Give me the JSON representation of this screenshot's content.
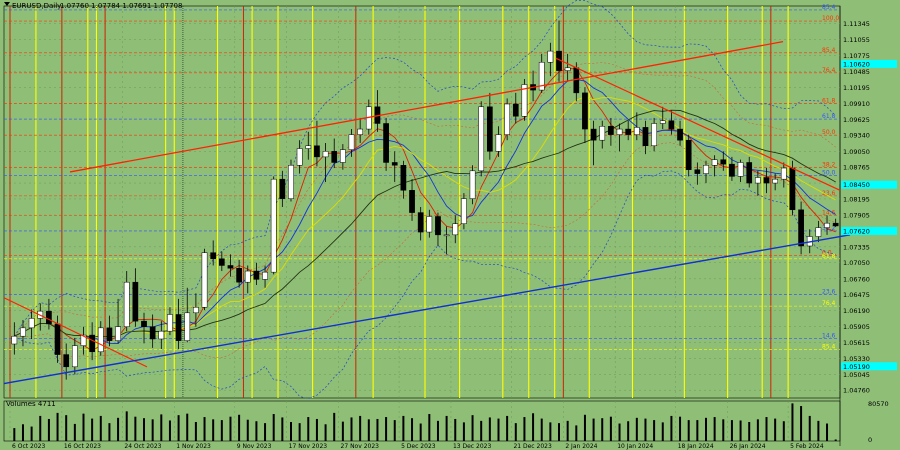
{
  "header": {
    "symbol": "EURUSD,Daily",
    "ohlc": "1.07760 1.07784 1.07691 1.07708"
  },
  "volume_label": "Volumes 4711",
  "colors": {
    "background": "#8fbf77",
    "bull": "#ffffff",
    "bear": "#000000",
    "yellow_vline": "#ffff00",
    "red_vline": "#cc2200",
    "red_trendline": "#ff2200",
    "blue_trendline": "#1030d0",
    "price_tag_highlight": "#00ffff"
  },
  "chart_data": {
    "type": "candlestick",
    "x_axis": {
      "labels": [
        "6 Oct 2023",
        "16 Oct 2023",
        "24 Oct 2023",
        "1 Nov 2023",
        "9 Nov 2023",
        "17 Nov 2023",
        "27 Nov 2023",
        "5 Dec 2023",
        "13 Dec 2023",
        "21 Dec 2023",
        "2 Jan 2024",
        "10 Jan 2024",
        "18 Jan 2024",
        "26 Jan 2024",
        "5 Feb 2024"
      ]
    },
    "y_axis": {
      "ticks": [
        "1.11345",
        "1.11055",
        "1.10775",
        "1.10485",
        "1.10195",
        "1.09910",
        "1.09625",
        "1.09340",
        "1.09050",
        "1.08765",
        "1.08480",
        "1.08195",
        "1.07905",
        "1.07620",
        "1.07335",
        "1.07050",
        "1.06760",
        "1.06475",
        "1.06190",
        "1.05905",
        "1.05615",
        "1.05330",
        "1.05045",
        "1.04760"
      ],
      "range": [
        1.0462,
        1.1166
      ],
      "highlighted_ticks": [
        "1.10620",
        "1.08450",
        "1.07620",
        "1.05190"
      ]
    },
    "fib_levels": [
      {
        "label": "85.4",
        "value": 1.1159,
        "color": "#3355ff"
      },
      {
        "label": "100.0",
        "value": 1.1139,
        "color": "#ff3300"
      },
      {
        "label": "85.4",
        "value": 1.1082,
        "color": "#ff3300"
      },
      {
        "label": "76.4",
        "value": 1.1046,
        "color": "#ff3300"
      },
      {
        "label": "61.8",
        "value": 1.0991,
        "color": "#ff3300"
      },
      {
        "label": "61.8",
        "value": 1.0963,
        "color": "#3355ff"
      },
      {
        "label": "50.0",
        "value": 1.0934,
        "color": "#ff3300"
      },
      {
        "label": "38.2",
        "value": 1.0876,
        "color": "#ff3300"
      },
      {
        "label": "50.0",
        "value": 1.0862,
        "color": "#3355ff"
      },
      {
        "label": "23.6",
        "value": 1.0825,
        "color": "#ff3300"
      },
      {
        "label": "14.6",
        "value": 1.079,
        "color": "#ff3300"
      },
      {
        "label": "38.2",
        "value": 1.0762,
        "color": "#3355ff"
      },
      {
        "label": "0.0",
        "value": 1.0718,
        "color": "#ff3300"
      },
      {
        "label": "61.8",
        "value": 1.0712,
        "color": "#ffff00"
      },
      {
        "label": "23.6",
        "value": 1.0648,
        "color": "#3355ff"
      },
      {
        "label": "76.4",
        "value": 1.0627,
        "color": "#ffff00"
      },
      {
        "label": "14.6",
        "value": 1.0569,
        "color": "#3355ff"
      },
      {
        "label": "85.4",
        "value": 1.0549,
        "color": "#ffff00"
      }
    ],
    "candles": [
      {
        "o": 1.0559,
        "h": 1.0598,
        "l": 1.054,
        "c": 1.0573
      },
      {
        "o": 1.0573,
        "h": 1.0602,
        "l": 1.0555,
        "c": 1.0588
      },
      {
        "o": 1.0588,
        "h": 1.0621,
        "l": 1.0568,
        "c": 1.0605
      },
      {
        "o": 1.0605,
        "h": 1.0632,
        "l": 1.0583,
        "c": 1.0618
      },
      {
        "o": 1.0618,
        "h": 1.064,
        "l": 1.0585,
        "c": 1.0595
      },
      {
        "o": 1.0595,
        "h": 1.061,
        "l": 1.0525,
        "c": 1.054
      },
      {
        "o": 1.054,
        "h": 1.056,
        "l": 1.0495,
        "c": 1.0518
      },
      {
        "o": 1.0518,
        "h": 1.057,
        "l": 1.0505,
        "c": 1.0556
      },
      {
        "o": 1.0556,
        "h": 1.059,
        "l": 1.054,
        "c": 1.0575
      },
      {
        "o": 1.0575,
        "h": 1.0598,
        "l": 1.053,
        "c": 1.0545
      },
      {
        "o": 1.0545,
        "h": 1.06,
        "l": 1.0538,
        "c": 1.0588
      },
      {
        "o": 1.0588,
        "h": 1.061,
        "l": 1.0555,
        "c": 1.0565
      },
      {
        "o": 1.0565,
        "h": 1.064,
        "l": 1.056,
        "c": 1.059
      },
      {
        "o": 1.059,
        "h": 1.069,
        "l": 1.0582,
        "c": 1.067
      },
      {
        "o": 1.067,
        "h": 1.0695,
        "l": 1.059,
        "c": 1.06
      },
      {
        "o": 1.06,
        "h": 1.0615,
        "l": 1.056,
        "c": 1.059
      },
      {
        "o": 1.059,
        "h": 1.0612,
        "l": 1.0552,
        "c": 1.0568
      },
      {
        "o": 1.0568,
        "h": 1.06,
        "l": 1.055,
        "c": 1.0582
      },
      {
        "o": 1.0582,
        "h": 1.0625,
        "l": 1.0575,
        "c": 1.0612
      },
      {
        "o": 1.0612,
        "h": 1.064,
        "l": 1.055,
        "c": 1.0565
      },
      {
        "o": 1.0565,
        "h": 1.066,
        "l": 1.0562,
        "c": 1.0615
      },
      {
        "o": 1.0615,
        "h": 1.065,
        "l": 1.059,
        "c": 1.0625
      },
      {
        "o": 1.0625,
        "h": 1.073,
        "l": 1.062,
        "c": 1.0723
      },
      {
        "o": 1.0723,
        "h": 1.0745,
        "l": 1.07,
        "c": 1.0712
      },
      {
        "o": 1.0712,
        "h": 1.0725,
        "l": 1.069,
        "c": 1.07
      },
      {
        "o": 1.07,
        "h": 1.072,
        "l": 1.068,
        "c": 1.0695
      },
      {
        "o": 1.0695,
        "h": 1.071,
        "l": 1.066,
        "c": 1.067
      },
      {
        "o": 1.067,
        "h": 1.07,
        "l": 1.065,
        "c": 1.069
      },
      {
        "o": 1.069,
        "h": 1.0705,
        "l": 1.0665,
        "c": 1.0675
      },
      {
        "o": 1.0675,
        "h": 1.07,
        "l": 1.066,
        "c": 1.0688
      },
      {
        "o": 1.0688,
        "h": 1.086,
        "l": 1.0684,
        "c": 1.0855
      },
      {
        "o": 1.0855,
        "h": 1.087,
        "l": 1.0805,
        "c": 1.082
      },
      {
        "o": 1.082,
        "h": 1.089,
        "l": 1.0815,
        "c": 1.088
      },
      {
        "o": 1.088,
        "h": 1.0925,
        "l": 1.0865,
        "c": 1.091
      },
      {
        "o": 1.091,
        "h": 1.094,
        "l": 1.089,
        "c": 1.0915
      },
      {
        "o": 1.0915,
        "h": 1.096,
        "l": 1.0878,
        "c": 1.0895
      },
      {
        "o": 1.0895,
        "h": 1.092,
        "l": 1.085,
        "c": 1.0905
      },
      {
        "o": 1.0905,
        "h": 1.0928,
        "l": 1.0875,
        "c": 1.0885
      },
      {
        "o": 1.0885,
        "h": 1.0918,
        "l": 1.0872,
        "c": 1.0908
      },
      {
        "o": 1.0908,
        "h": 1.0945,
        "l": 1.0895,
        "c": 1.0935
      },
      {
        "o": 1.0935,
        "h": 1.0965,
        "l": 1.092,
        "c": 1.0945
      },
      {
        "o": 1.0945,
        "h": 1.0998,
        "l": 1.0935,
        "c": 1.0985
      },
      {
        "o": 1.0985,
        "h": 1.1015,
        "l": 1.094,
        "c": 1.0955
      },
      {
        "o": 1.0955,
        "h": 1.0965,
        "l": 1.087,
        "c": 1.0885
      },
      {
        "o": 1.0885,
        "h": 1.0905,
        "l": 1.085,
        "c": 1.088
      },
      {
        "o": 1.088,
        "h": 1.0888,
        "l": 1.082,
        "c": 1.0835
      },
      {
        "o": 1.0835,
        "h": 1.0855,
        "l": 1.078,
        "c": 1.0795
      },
      {
        "o": 1.0795,
        "h": 1.0805,
        "l": 1.0745,
        "c": 1.076
      },
      {
        "o": 1.076,
        "h": 1.08,
        "l": 1.075,
        "c": 1.0788
      },
      {
        "o": 1.0788,
        "h": 1.0795,
        "l": 1.0735,
        "c": 1.0755
      },
      {
        "o": 1.0755,
        "h": 1.077,
        "l": 1.072,
        "c": 1.0755
      },
      {
        "o": 1.0755,
        "h": 1.079,
        "l": 1.074,
        "c": 1.0775
      },
      {
        "o": 1.0775,
        "h": 1.083,
        "l": 1.0765,
        "c": 1.082
      },
      {
        "o": 1.082,
        "h": 1.088,
        "l": 1.081,
        "c": 1.087
      },
      {
        "o": 1.087,
        "h": 1.0995,
        "l": 1.086,
        "c": 1.0985
      },
      {
        "o": 1.0985,
        "h": 1.101,
        "l": 1.089,
        "c": 1.0905
      },
      {
        "o": 1.0905,
        "h": 1.095,
        "l": 1.0895,
        "c": 1.0935
      },
      {
        "o": 1.0935,
        "h": 1.1,
        "l": 1.0925,
        "c": 1.099
      },
      {
        "o": 1.099,
        "h": 1.101,
        "l": 1.0955,
        "c": 1.0968
      },
      {
        "o": 1.0968,
        "h": 1.1035,
        "l": 1.096,
        "c": 1.1025
      },
      {
        "o": 1.1025,
        "h": 1.105,
        "l": 1.0995,
        "c": 1.1015
      },
      {
        "o": 1.1015,
        "h": 1.108,
        "l": 1.101,
        "c": 1.1065
      },
      {
        "o": 1.1065,
        "h": 1.11,
        "l": 1.104,
        "c": 1.1085
      },
      {
        "o": 1.1085,
        "h": 1.114,
        "l": 1.103,
        "c": 1.105
      },
      {
        "o": 1.105,
        "h": 1.108,
        "l": 1.103,
        "c": 1.1055
      },
      {
        "o": 1.1055,
        "h": 1.1065,
        "l": 1.0995,
        "c": 1.101
      },
      {
        "o": 1.101,
        "h": 1.102,
        "l": 1.092,
        "c": 1.0945
      },
      {
        "o": 1.0945,
        "h": 1.096,
        "l": 1.088,
        "c": 1.0925
      },
      {
        "o": 1.0925,
        "h": 1.096,
        "l": 1.091,
        "c": 1.095
      },
      {
        "o": 1.095,
        "h": 1.0965,
        "l": 1.0915,
        "c": 1.0935
      },
      {
        "o": 1.0935,
        "h": 1.0955,
        "l": 1.0905,
        "c": 1.0945
      },
      {
        "o": 1.0945,
        "h": 1.096,
        "l": 1.0925,
        "c": 1.0935
      },
      {
        "o": 1.0935,
        "h": 1.0975,
        "l": 1.0925,
        "c": 1.0948
      },
      {
        "o": 1.0948,
        "h": 1.096,
        "l": 1.09,
        "c": 1.0915
      },
      {
        "o": 1.0915,
        "h": 1.0965,
        "l": 1.0905,
        "c": 1.0955
      },
      {
        "o": 1.0955,
        "h": 1.0985,
        "l": 1.0945,
        "c": 1.096
      },
      {
        "o": 1.096,
        "h": 1.0978,
        "l": 1.0935,
        "c": 1.0945
      },
      {
        "o": 1.0945,
        "h": 1.096,
        "l": 1.0915,
        "c": 1.0925
      },
      {
        "o": 1.0925,
        "h": 1.0935,
        "l": 1.086,
        "c": 1.0872
      },
      {
        "o": 1.0872,
        "h": 1.0885,
        "l": 1.0845,
        "c": 1.0865
      },
      {
        "o": 1.0865,
        "h": 1.0888,
        "l": 1.0848,
        "c": 1.088
      },
      {
        "o": 1.088,
        "h": 1.0898,
        "l": 1.086,
        "c": 1.089
      },
      {
        "o": 1.089,
        "h": 1.0905,
        "l": 1.087,
        "c": 1.0882
      },
      {
        "o": 1.0882,
        "h": 1.0895,
        "l": 1.0852,
        "c": 1.086
      },
      {
        "o": 1.086,
        "h": 1.089,
        "l": 1.085,
        "c": 1.0885
      },
      {
        "o": 1.0885,
        "h": 1.0895,
        "l": 1.084,
        "c": 1.0848
      },
      {
        "o": 1.0848,
        "h": 1.087,
        "l": 1.0825,
        "c": 1.0858
      },
      {
        "o": 1.0858,
        "h": 1.0875,
        "l": 1.083,
        "c": 1.0848
      },
      {
        "o": 1.0848,
        "h": 1.0865,
        "l": 1.0835,
        "c": 1.0855
      },
      {
        "o": 1.0855,
        "h": 1.0885,
        "l": 1.084,
        "c": 1.0875
      },
      {
        "o": 1.0875,
        "h": 1.0888,
        "l": 1.079,
        "c": 1.08
      },
      {
        "o": 1.08,
        "h": 1.0815,
        "l": 1.072,
        "c": 1.0735
      },
      {
        "o": 1.0735,
        "h": 1.0765,
        "l": 1.0722,
        "c": 1.0752
      },
      {
        "o": 1.0752,
        "h": 1.078,
        "l": 1.0742,
        "c": 1.0768
      },
      {
        "o": 1.0768,
        "h": 1.079,
        "l": 1.0755,
        "c": 1.0776
      },
      {
        "o": 1.0776,
        "h": 1.0784,
        "l": 1.0769,
        "c": 1.0771
      }
    ],
    "volumes": [
      0.34,
      0.44,
      0.38,
      0.66,
      0.58,
      0.74,
      0.68,
      0.45,
      0.72,
      0.59,
      0.66,
      0.47,
      0.61,
      0.78,
      0.64,
      0.6,
      0.57,
      0.7,
      0.54,
      0.68,
      0.72,
      0.5,
      0.63,
      0.57,
      0.55,
      0.64,
      0.69,
      0.56,
      0.52,
      0.47,
      0.71,
      0.62,
      0.5,
      0.47,
      0.63,
      0.58,
      0.44,
      0.74,
      0.51,
      0.62,
      0.66,
      0.57,
      0.58,
      0.63,
      0.55,
      0.66,
      0.6,
      0.46,
      0.71,
      0.53,
      0.66,
      0.58,
      0.49,
      0.68,
      0.53,
      0.62,
      0.59,
      0.66,
      0.47,
      0.63,
      0.73,
      0.59,
      0.49,
      0.47,
      0.53,
      0.41,
      0.69,
      0.59,
      0.6,
      0.64,
      0.46,
      0.52,
      0.61,
      0.59,
      0.55,
      0.49,
      0.66,
      0.64,
      0.55,
      0.55,
      0.61,
      0.63,
      0.57,
      0.55,
      0.54,
      0.5,
      0.57,
      0.63,
      0.59,
      0.52,
      0.99,
      0.92,
      0.66,
      0.53,
      0.46,
      0.04
    ],
    "volume_axis_top": "80570",
    "volume_axis_bottom": "0"
  }
}
